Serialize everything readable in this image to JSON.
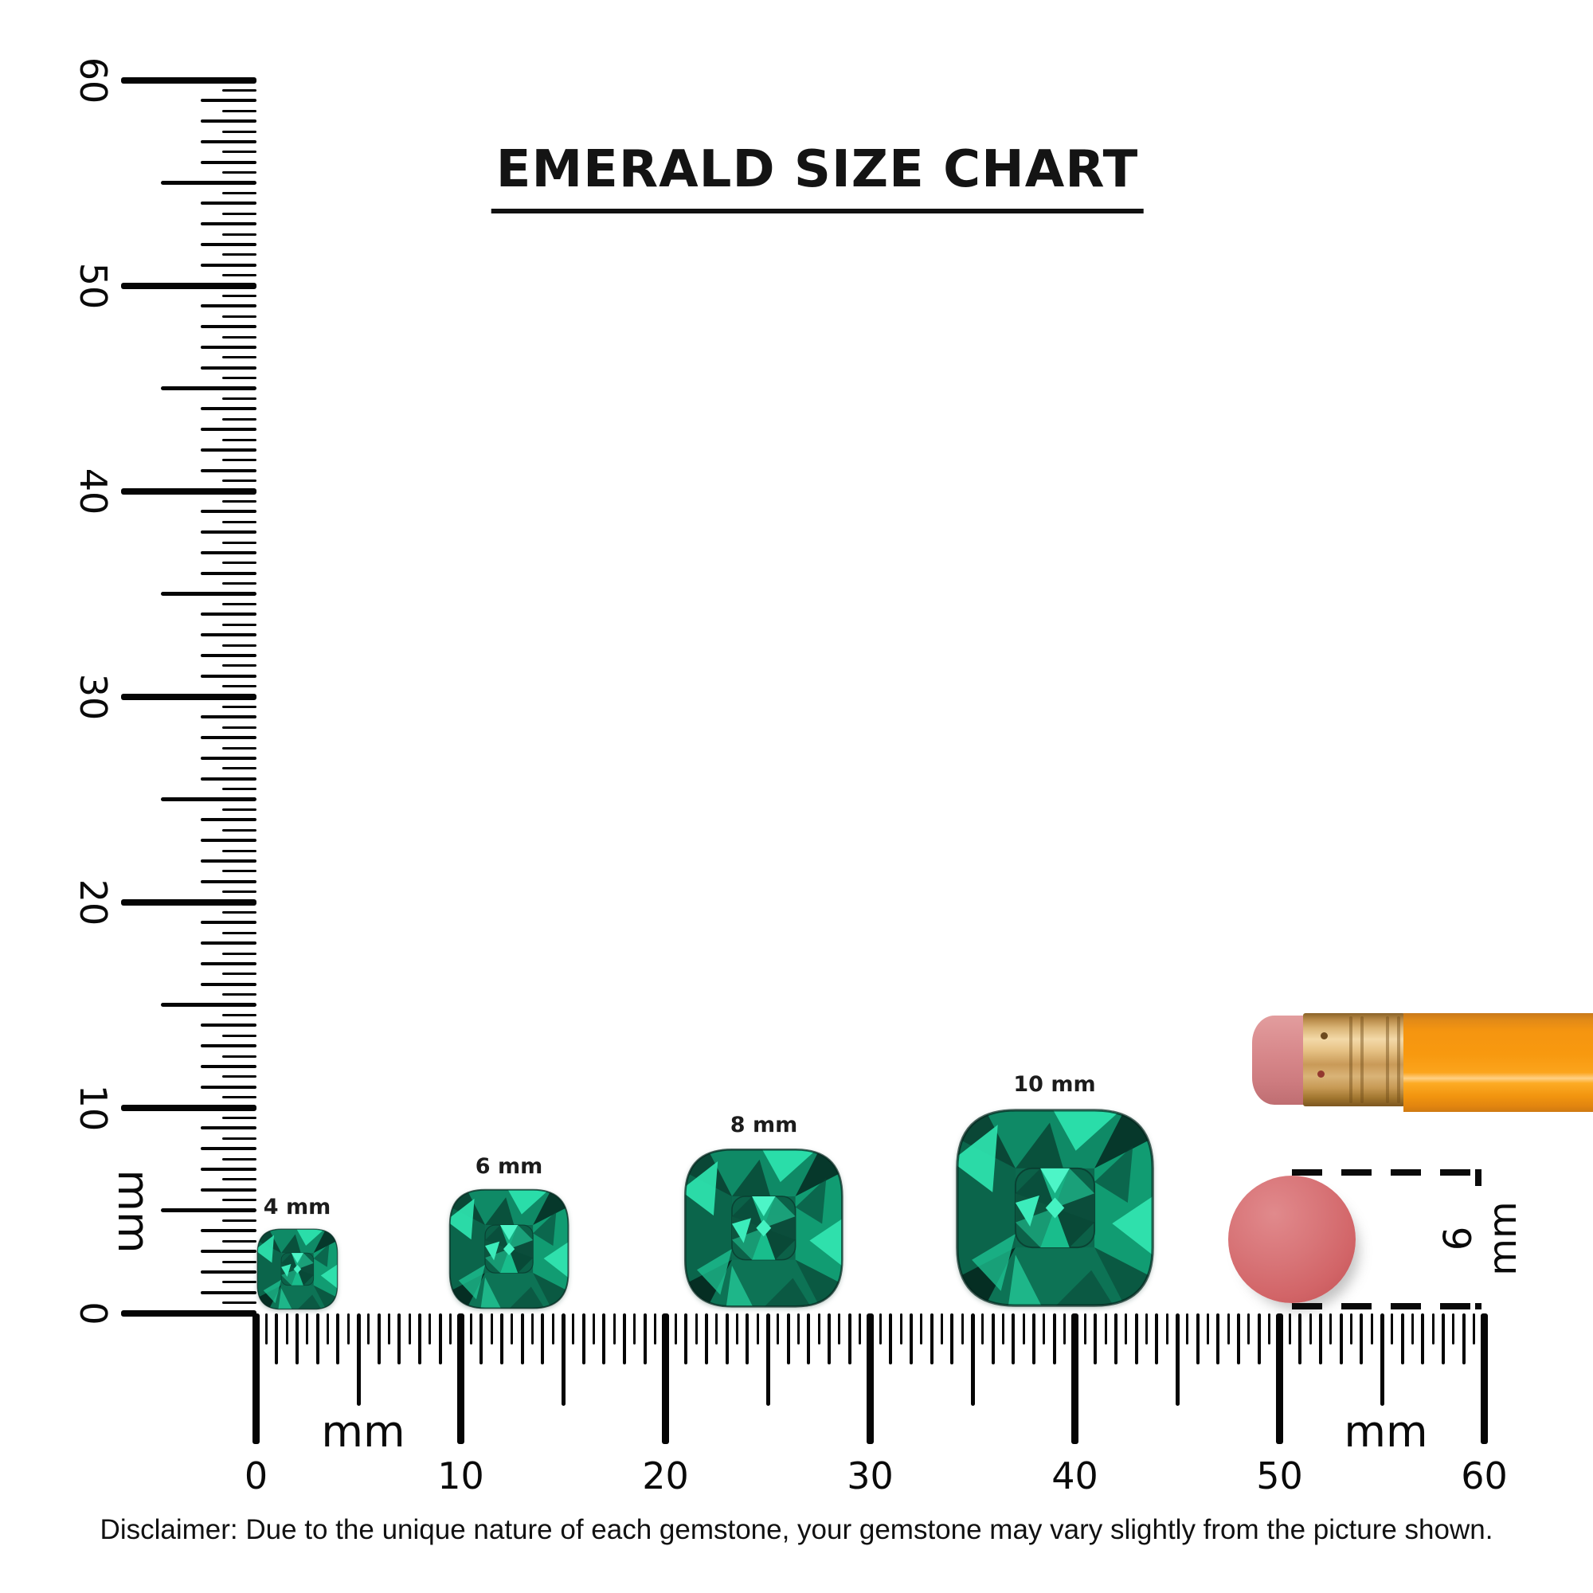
{
  "title": "EMERALD SIZE CHART",
  "rulers": {
    "unit": "mm",
    "vertical": {
      "labels": [
        60,
        50,
        40,
        30,
        20,
        10,
        0
      ],
      "unit_label": "mm",
      "min_mm": 0,
      "max_mm": 60
    },
    "horizontal": {
      "labels": [
        0,
        10,
        20,
        30,
        40,
        50,
        60
      ],
      "unit_label_left": "mm",
      "unit_label_right": "mm",
      "min_mm": 0,
      "max_mm": 60
    }
  },
  "gems": [
    {
      "label": "4 mm",
      "size_mm": 4
    },
    {
      "label": "6 mm",
      "size_mm": 6
    },
    {
      "label": "8 mm",
      "size_mm": 8
    },
    {
      "label": "10 mm",
      "size_mm": 10
    }
  ],
  "eraser_comparison": {
    "label": "6 mm",
    "diameter_mm": 6
  },
  "disclaimer": "Disclaimer: Due to the unique nature of each gemstone, your gemstone may vary slightly from the picture shown.",
  "colors": {
    "emerald_bright": "#2ce2ad",
    "emerald_mid": "#0f8a66",
    "emerald_dark": "#06382b",
    "eraser_pink": "#d46b6f",
    "pencil_orange": "#f8990f",
    "ferrule_brass": "#d4ab6e",
    "ink": "#000000"
  }
}
